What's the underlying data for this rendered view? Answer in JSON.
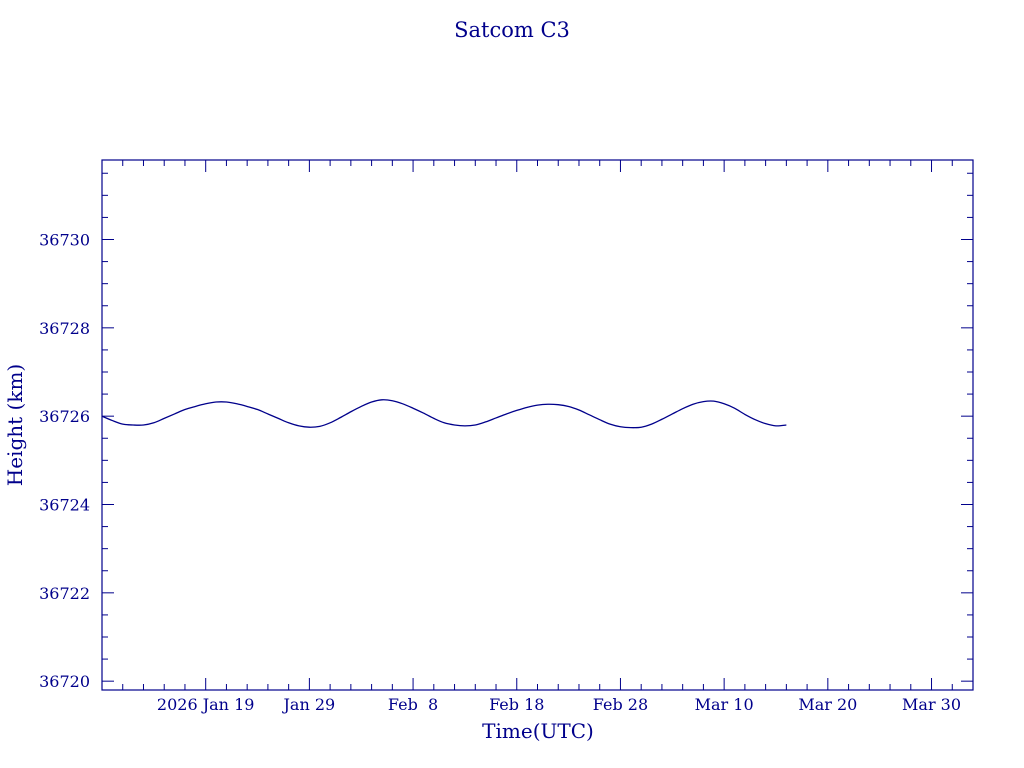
{
  "chart_data": {
    "type": "line",
    "title": "Satcom C3",
    "xlabel": "Time(UTC)",
    "ylabel": "Height (km)",
    "color": "#00008b",
    "grid": false,
    "legend": "none",
    "xlim": [
      "2026-01-09",
      "2026-04-03"
    ],
    "ylim": [
      36719.8,
      36731.8
    ],
    "x_ticks": [
      {
        "date": "2026-01-19",
        "label": "2026 Jan 19"
      },
      {
        "date": "2026-01-29",
        "label": "Jan 29"
      },
      {
        "date": "2026-02-08",
        "label": "Feb  8"
      },
      {
        "date": "2026-02-18",
        "label": "Feb 18"
      },
      {
        "date": "2026-02-28",
        "label": "Feb 28"
      },
      {
        "date": "2026-03-10",
        "label": "Mar 10"
      },
      {
        "date": "2026-03-20",
        "label": "Mar 20"
      },
      {
        "date": "2026-03-30",
        "label": "Mar 30"
      }
    ],
    "y_ticks": [
      {
        "value": 36720,
        "label": "36720"
      },
      {
        "value": 36722,
        "label": "36722"
      },
      {
        "value": 36724,
        "label": "36724"
      },
      {
        "value": 36726,
        "label": "36726"
      },
      {
        "value": 36728,
        "label": "36728"
      },
      {
        "value": 36730,
        "label": "36730"
      }
    ],
    "series": [
      {
        "x": [
          "2026-01-09",
          "2026-01-10",
          "2026-01-11",
          "2026-01-12",
          "2026-01-13",
          "2026-01-14",
          "2026-01-15",
          "2026-01-16",
          "2026-01-17",
          "2026-01-18",
          "2026-01-19",
          "2026-01-20",
          "2026-01-21",
          "2026-01-22",
          "2026-01-23",
          "2026-01-24",
          "2026-01-25",
          "2026-01-26",
          "2026-01-27",
          "2026-01-28",
          "2026-01-29",
          "2026-01-30",
          "2026-01-31",
          "2026-02-01",
          "2026-02-02",
          "2026-02-03",
          "2026-02-04",
          "2026-02-05",
          "2026-02-06",
          "2026-02-07",
          "2026-02-08",
          "2026-02-09",
          "2026-02-10",
          "2026-02-11",
          "2026-02-12",
          "2026-02-13",
          "2026-02-14",
          "2026-02-15",
          "2026-02-16",
          "2026-02-17",
          "2026-02-18",
          "2026-02-19",
          "2026-02-20",
          "2026-02-21",
          "2026-02-22",
          "2026-02-23",
          "2026-02-24",
          "2026-02-25",
          "2026-02-26",
          "2026-02-27",
          "2026-02-28",
          "2026-03-01",
          "2026-03-02",
          "2026-03-03",
          "2026-03-04",
          "2026-03-05",
          "2026-03-06",
          "2026-03-07",
          "2026-03-08",
          "2026-03-09",
          "2026-03-10",
          "2026-03-11",
          "2026-03-12",
          "2026-03-13",
          "2026-03-14",
          "2026-03-15",
          "2026-03-16"
        ],
        "y": [
          36726.0,
          36725.9,
          36725.82,
          36725.8,
          36725.8,
          36725.85,
          36725.95,
          36726.05,
          36726.15,
          36726.22,
          36726.28,
          36726.32,
          36726.32,
          36726.28,
          36726.22,
          36726.15,
          36726.05,
          36725.95,
          36725.85,
          36725.78,
          36725.75,
          36725.77,
          36725.85,
          36725.97,
          36726.1,
          36726.22,
          36726.32,
          36726.37,
          36726.35,
          36726.28,
          36726.18,
          36726.07,
          36725.95,
          36725.85,
          36725.8,
          36725.78,
          36725.8,
          36725.87,
          36725.96,
          36726.05,
          36726.13,
          36726.2,
          36726.25,
          36726.27,
          36726.26,
          36726.22,
          36726.14,
          36726.03,
          36725.92,
          36725.82,
          36725.76,
          36725.74,
          36725.75,
          36725.82,
          36725.93,
          36726.05,
          36726.17,
          36726.27,
          36726.33,
          36726.34,
          36726.28,
          36726.18,
          36726.04,
          36725.92,
          36725.83,
          36725.78,
          36725.8
        ]
      }
    ]
  }
}
